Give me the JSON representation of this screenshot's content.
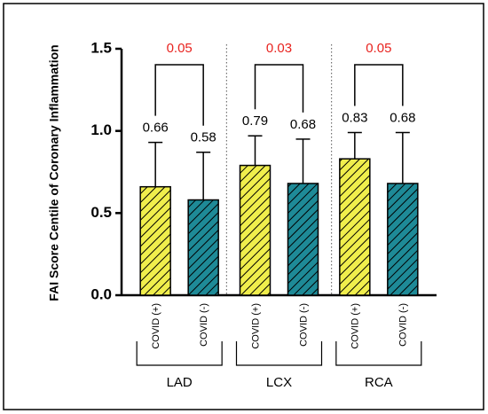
{
  "chart_data": {
    "type": "bar",
    "y_label": "FAI Score Centile of Coronary Inflammation",
    "categories": [
      "LAD",
      "LCX",
      "RCA"
    ],
    "series": [
      {
        "name": "COVID (+)",
        "color": "#f0ee4c",
        "values": [
          0.66,
          0.79,
          0.83
        ],
        "errors": [
          0.27,
          0.18,
          0.16
        ]
      },
      {
        "name": "COVID (-)",
        "color": "#1e8a97",
        "values": [
          0.58,
          0.68,
          0.68
        ],
        "errors": [
          0.29,
          0.27,
          0.31
        ]
      }
    ],
    "p_values": [
      0.05,
      0.03,
      0.05
    ],
    "p_color": "#e8231f",
    "ylim": [
      0,
      1.5
    ],
    "yticks": [
      {
        "value": 0,
        "label": "0.0"
      },
      {
        "value": 0.5,
        "label": "0.5"
      },
      {
        "value": 1,
        "label": "1.0"
      },
      {
        "value": 1.5,
        "label": "1.5"
      }
    ],
    "hatched": true
  }
}
